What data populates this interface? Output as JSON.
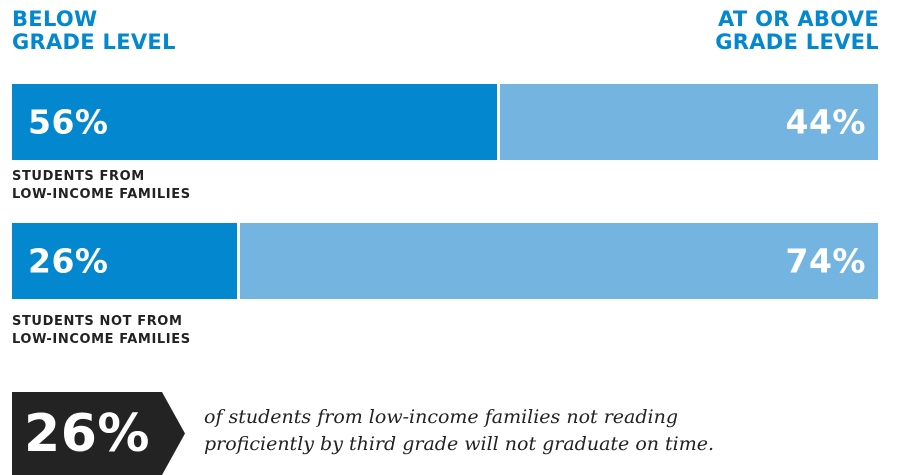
{
  "header": {
    "left_line1": "BELOW",
    "left_line2": "GRADE LEVEL",
    "right_line1": "AT OR ABOVE",
    "right_line2": "GRADE LEVEL"
  },
  "colors": {
    "below": "#0388cf",
    "above": "#73b5e0",
    "callout": "#232323",
    "text": "#222222"
  },
  "chart_data": {
    "type": "bar",
    "stacked": true,
    "orientation": "horizontal",
    "categories": [
      "STUDENTS FROM LOW-INCOME FAMILIES",
      "STUDENTS NOT FROM LOW-INCOME FAMILIES"
    ],
    "category_lines": [
      [
        "STUDENTS FROM",
        "LOW-INCOME FAMILIES"
      ],
      [
        "STUDENTS NOT FROM",
        "LOW-INCOME FAMILIES"
      ]
    ],
    "series": [
      {
        "name": "BELOW GRADE LEVEL",
        "values": [
          56,
          26
        ],
        "labels": [
          "56%",
          "26%"
        ]
      },
      {
        "name": "AT OR ABOVE GRADE LEVEL",
        "values": [
          44,
          74
        ],
        "labels": [
          "44%",
          "74%"
        ]
      }
    ],
    "xlim": [
      0,
      100
    ]
  },
  "callout": {
    "value": "26%",
    "text_line1": "of students from low-income families not reading",
    "text_line2": "proficiently by third grade will not graduate on time."
  }
}
